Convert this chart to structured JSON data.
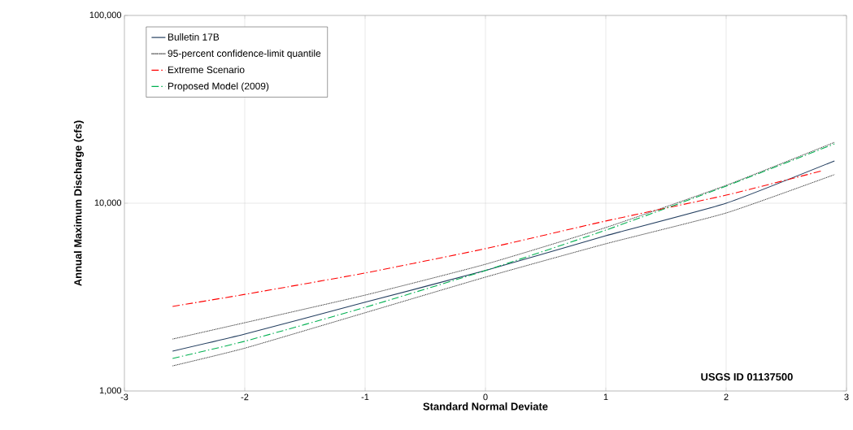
{
  "chart_data": {
    "type": "line",
    "xlabel": "Standard Normal Deviate",
    "ylabel": "Annual Maximum Discharge (cfs)",
    "log": "y",
    "grid": true,
    "legend": "top left",
    "xlim": [
      -3,
      3
    ],
    "ylim": [
      1000,
      100000
    ],
    "xticks": [
      -3,
      -2,
      -1,
      0,
      1,
      2,
      3
    ],
    "yticks": [
      {
        "value": 1000,
        "label": "1,000"
      },
      {
        "value": 10000,
        "label": "10,000"
      },
      {
        "value": 100000,
        "label": "100,000"
      }
    ],
    "annotations": [
      "USGS ID 01137500"
    ],
    "x": [
      -2.6,
      -2,
      -1,
      0,
      1,
      2,
      2.9
    ],
    "series": [
      {
        "name": "Bulletin 17B",
        "color": "#243f60",
        "line_style": "solid",
        "values": [
          1630,
          2010,
          2970,
          4380,
          6710,
          10000,
          16800
        ]
      },
      {
        "name": "95-percent confidence-limit quantile",
        "color": "#000000",
        "line_style": "dotted",
        "values": [
          1890,
          2310,
          3240,
          4730,
          7420,
          12450,
          21100
        ]
      },
      {
        "color": "#000000",
        "line_style": "dotted",
        "values": [
          1360,
          1690,
          2610,
          4040,
          6080,
          8870,
          14200
        ]
      },
      {
        "name": "Extreme Scenario",
        "color": "#ff0000",
        "line_style": "dashed",
        "x": [
          -2.6,
          -2,
          -1,
          0,
          1,
          2,
          2.8
        ],
        "values": [
          2820,
          3270,
          4250,
          5730,
          8040,
          11040,
          14900
        ]
      },
      {
        "name": "Proposed Model (2009)",
        "color": "#00b050",
        "line_style": "dashed",
        "values": [
          1490,
          1840,
          2790,
          4380,
          7190,
          12340,
          20700
        ]
      }
    ]
  }
}
